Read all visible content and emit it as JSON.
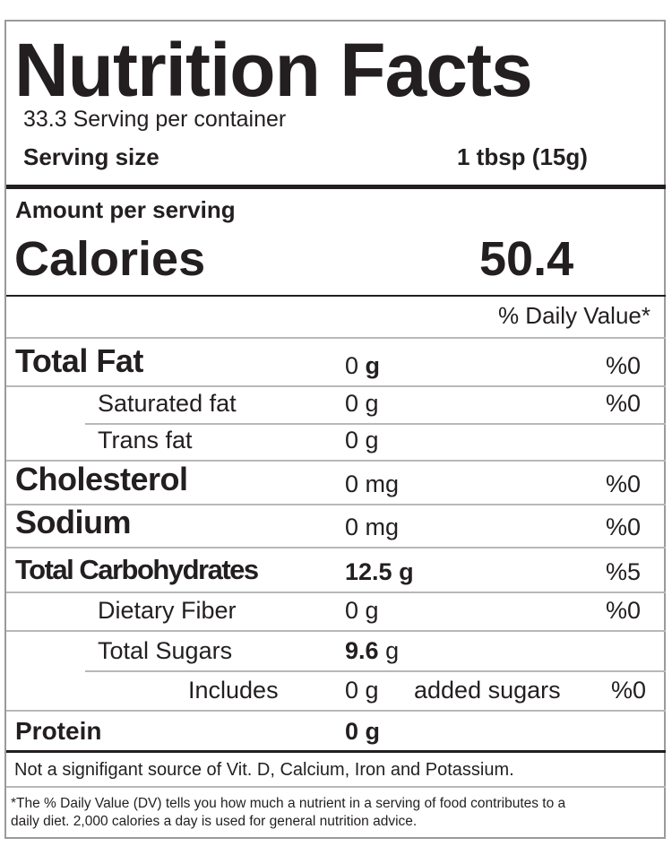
{
  "header": {
    "title": "Nutrition Facts",
    "servings_per_container": "33.3 Serving per container",
    "serving_size_label": "Serving size",
    "serving_size_value": "1 tbsp (15g)"
  },
  "calories": {
    "amount_per_serving": "Amount per serving",
    "label": "Calories",
    "value": "50.4"
  },
  "daily_value_header": "% Daily Value*",
  "nutrients": [
    {
      "label": "Total Fat",
      "amount": "0",
      "unit": "g",
      "dv": "%0"
    },
    {
      "label": "Saturated fat",
      "amount": "0",
      "unit": "g",
      "dv": "%0"
    },
    {
      "label": "Trans fat",
      "amount": "0",
      "unit": "g"
    },
    {
      "label": "Cholesterol",
      "amount": "0",
      "unit": "mg",
      "dv": "%0"
    },
    {
      "label": "Sodium",
      "amount": "0",
      "unit": "mg",
      "dv": "%0"
    },
    {
      "label": "Total Carbohydrates",
      "amount": "12.5",
      "unit": "g",
      "dv": "%5"
    },
    {
      "label": "Dietary Fiber",
      "amount": "0",
      "unit": "g",
      "dv": "%0"
    },
    {
      "label": "Total Sugars",
      "amount": "9.6",
      "unit": "g"
    },
    {
      "label": "Includes",
      "amount": "0",
      "unit": "g",
      "extra": "added sugars",
      "dv": "%0"
    },
    {
      "label": "Protein",
      "amount": "0",
      "unit": "g"
    }
  ],
  "footer": {
    "not_significant": "Not a signifigant source of Vit. D, Calcium, Iron and Potassium.",
    "dv_note_line1": "*The % Daily Value (DV) tells you how much a nutrient in a serving of food contributes to a",
    "dv_note_line2": "daily diet. 2,000 calories a day is used for general nutrition advice."
  }
}
